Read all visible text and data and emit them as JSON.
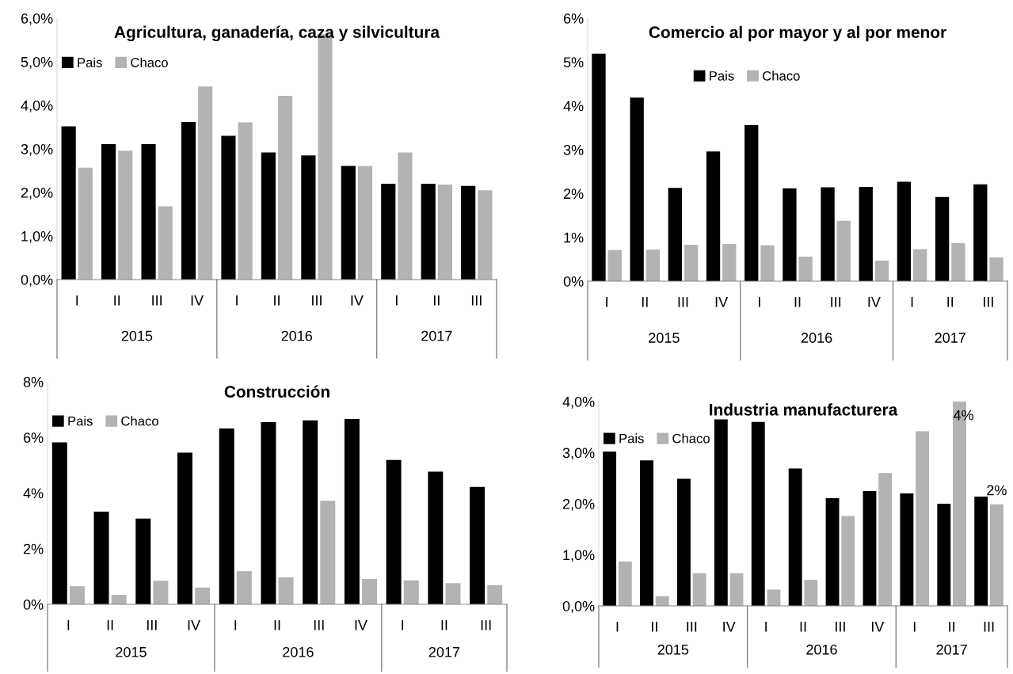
{
  "chart_data": [
    {
      "type": "bar",
      "title": "Agricultura, ganadería, caza y silvicultura",
      "categories": [
        "I",
        "II",
        "III",
        "IV",
        "I",
        "II",
        "III",
        "IV",
        "I",
        "II",
        "III"
      ],
      "annotations": [
        "2015",
        "2016",
        "2017"
      ],
      "series": [
        {
          "name": "Pais",
          "color": "#000000",
          "values": [
            3.52,
            3.11,
            3.11,
            3.62,
            3.3,
            2.92,
            2.85,
            2.61,
            2.2,
            2.2,
            2.15
          ]
        },
        {
          "name": "Chaco",
          "color": "#b3b3b3",
          "values": [
            2.57,
            2.96,
            1.68,
            4.43,
            3.61,
            4.22,
            5.63,
            2.61,
            2.92,
            2.18,
            2.05
          ]
        }
      ],
      "ylim": [
        0,
        6
      ],
      "yticks": [
        {
          "value": 0,
          "label": "0,0%"
        },
        {
          "value": 1,
          "label": "1,0%"
        },
        {
          "value": 2,
          "label": "2,0%"
        },
        {
          "value": 3,
          "label": "3,0%"
        },
        {
          "value": 4,
          "label": "4,0%"
        },
        {
          "value": 5,
          "label": "5,0%"
        },
        {
          "value": 6,
          "label": "6,0%"
        }
      ],
      "legend": "top left",
      "grid": false
    },
    {
      "type": "bar",
      "title": "Comercio al por mayor y al por menor",
      "categories": [
        "I",
        "II",
        "III",
        "IV",
        "I",
        "II",
        "III",
        "IV",
        "I",
        "II",
        "III"
      ],
      "annotations": [
        "2015",
        "2016",
        "2017"
      ],
      "series": [
        {
          "name": "Pais",
          "color": "#000000",
          "values": [
            5.19,
            4.19,
            2.13,
            2.96,
            3.56,
            2.12,
            2.14,
            2.15,
            2.27,
            1.92,
            2.21
          ]
        },
        {
          "name": "Chaco",
          "color": "#b3b3b3",
          "values": [
            0.71,
            0.72,
            0.83,
            0.85,
            0.82,
            0.56,
            1.38,
            0.47,
            0.73,
            0.87,
            0.54
          ]
        }
      ],
      "ylim": [
        0,
        6
      ],
      "yticks": [
        {
          "value": 0,
          "label": "0%"
        },
        {
          "value": 1,
          "label": "1%"
        },
        {
          "value": 2,
          "label": "2%"
        },
        {
          "value": 3,
          "label": "3%"
        },
        {
          "value": 4,
          "label": "4%"
        },
        {
          "value": 5,
          "label": "5%"
        },
        {
          "value": 6,
          "label": "6%"
        }
      ],
      "legend": "top",
      "grid": false
    },
    {
      "type": "bar",
      "title": "Construcción",
      "categories": [
        "I",
        "II",
        "III",
        "IV",
        "I",
        "II",
        "III",
        "IV",
        "I",
        "II",
        "III"
      ],
      "annotations": [
        "2015",
        "2016",
        "2017"
      ],
      "series": [
        {
          "name": "Pais",
          "color": "#000000",
          "values": [
            5.82,
            3.33,
            3.08,
            5.45,
            6.32,
            6.55,
            6.61,
            6.66,
            5.19,
            4.77,
            4.22
          ]
        },
        {
          "name": "Chaco",
          "color": "#b3b3b3",
          "values": [
            0.65,
            0.34,
            0.85,
            0.6,
            1.19,
            0.97,
            3.72,
            0.91,
            0.86,
            0.76,
            0.69
          ]
        }
      ],
      "ylim": [
        0,
        8
      ],
      "yticks": [
        {
          "value": 0,
          "label": "0%"
        },
        {
          "value": 2,
          "label": "2%"
        },
        {
          "value": 4,
          "label": "4%"
        },
        {
          "value": 6,
          "label": "6%"
        },
        {
          "value": 8,
          "label": "8%"
        }
      ],
      "legend": "top left",
      "grid": false
    },
    {
      "type": "bar",
      "title": "Industria manufacturera",
      "categories": [
        "I",
        "II",
        "III",
        "IV",
        "I",
        "II",
        "III",
        "IV",
        "I",
        "II",
        "III"
      ],
      "annotations": [
        "2015",
        "2016",
        "2017"
      ],
      "series": [
        {
          "name": "Pais",
          "color": "#000000",
          "values": [
            3.02,
            2.85,
            2.49,
            3.65,
            3.6,
            2.69,
            2.11,
            2.25,
            2.2,
            2.0,
            2.14
          ]
        },
        {
          "name": "Chaco",
          "color": "#b3b3b3",
          "values": [
            0.87,
            0.19,
            0.64,
            0.64,
            0.32,
            0.51,
            1.76,
            2.6,
            3.42,
            4.0,
            1.99
          ],
          "value_labels": [
            null,
            null,
            null,
            null,
            null,
            null,
            null,
            null,
            null,
            "4%",
            "2%"
          ]
        }
      ],
      "ylim": [
        0,
        4
      ],
      "yticks": [
        {
          "value": 0,
          "label": "0,0%"
        },
        {
          "value": 1,
          "label": "1,0%"
        },
        {
          "value": 2,
          "label": "2,0%"
        },
        {
          "value": 3,
          "label": "3,0%"
        },
        {
          "value": 4,
          "label": "4,0%"
        }
      ],
      "legend": "top left",
      "grid": false
    }
  ]
}
